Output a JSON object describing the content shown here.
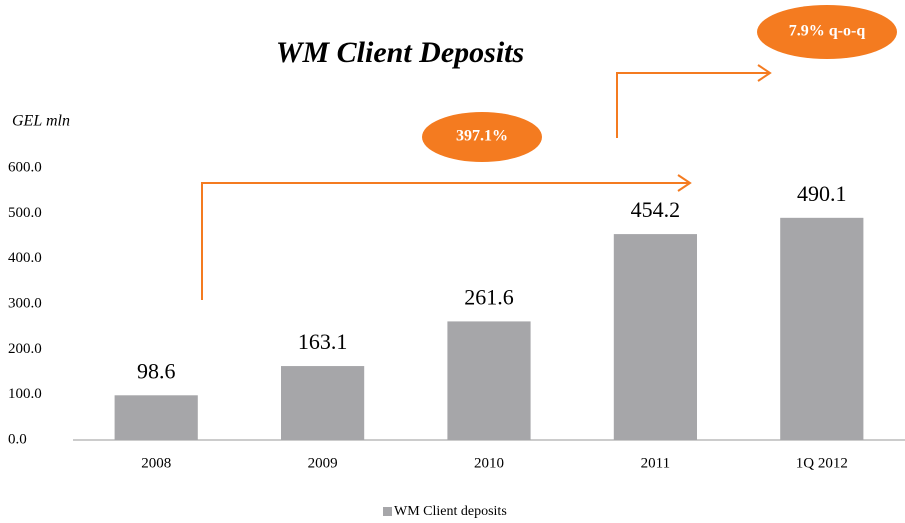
{
  "chart_data": {
    "type": "bar",
    "title": "WM Client Deposits",
    "y_axis_label": "GEL mln",
    "categories": [
      "2008",
      "2009",
      "2010",
      "2011",
      "1Q 2012"
    ],
    "series": [
      {
        "name": "WM Client deposits",
        "color": "#a6a6a9",
        "values": [
          98.6,
          163.1,
          261.6,
          454.2,
          490.1
        ]
      }
    ],
    "ylim": [
      0,
      600
    ],
    "yticks": [
      {
        "value": 0,
        "label": "0.0"
      },
      {
        "value": 100,
        "label": "100.0"
      },
      {
        "value": 200,
        "label": "200.0"
      },
      {
        "value": 300,
        "label": "300.0"
      },
      {
        "value": 400,
        "label": "400.0"
      },
      {
        "value": 500,
        "label": "500.0"
      },
      {
        "value": 600,
        "label": "600.0"
      }
    ],
    "annotations": [
      "397.1%",
      "7.9% q-o-q"
    ],
    "grid": false,
    "legend": "bottom"
  }
}
